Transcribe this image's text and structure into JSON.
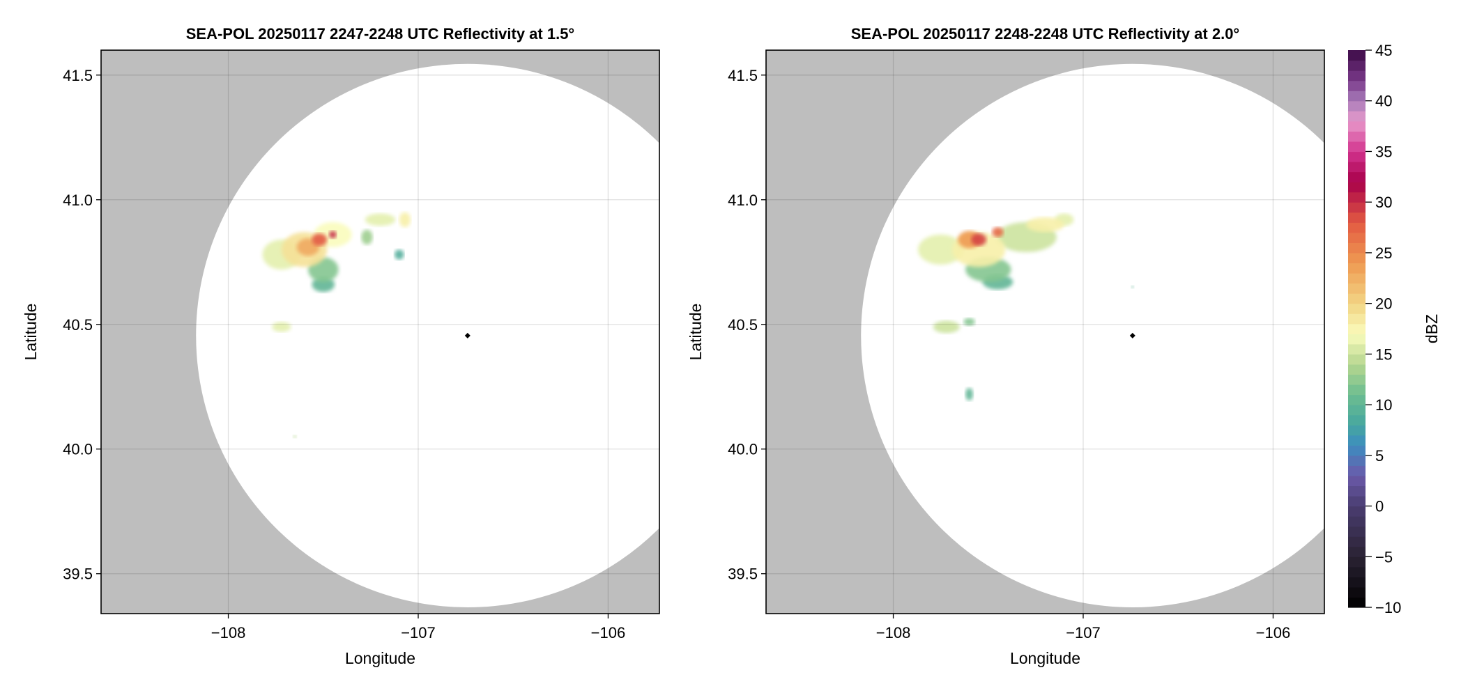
{
  "chart_data": [
    {
      "type": "heatmap",
      "title": "SEA-POL 20250117 2247-2248 UTC Reflectivity at 1.5°",
      "xlabel": "Longitude",
      "ylabel": "Latitude",
      "xlim": [
        -108.67,
        -105.73
      ],
      "ylim": [
        39.34,
        41.6
      ],
      "xticks": [
        -108,
        -107,
        -106
      ],
      "xtick_labels": [
        "−108",
        "−107",
        "−106"
      ],
      "yticks": [
        39.5,
        40.0,
        40.5,
        41.0,
        41.5
      ],
      "ytick_labels": [
        "39.5",
        "40.0",
        "40.5",
        "41.0",
        "41.5"
      ],
      "grid": true,
      "radar_site": {
        "lon": -106.74,
        "lat": 40.455
      },
      "range_circle": {
        "lon": -106.74,
        "lat": 40.455,
        "dlon": 1.43,
        "dlat": 1.09
      },
      "echoes": [
        [
          -107.72,
          40.78,
          0.1,
          0.06,
          16
        ],
        [
          -107.6,
          40.8,
          0.12,
          0.07,
          19
        ],
        [
          -107.45,
          40.86,
          0.1,
          0.05,
          17
        ],
        [
          -107.5,
          40.72,
          0.08,
          0.05,
          12
        ],
        [
          -107.5,
          40.66,
          0.06,
          0.03,
          10
        ],
        [
          -107.58,
          40.81,
          0.06,
          0.035,
          23
        ],
        [
          -107.52,
          40.84,
          0.04,
          0.025,
          28
        ],
        [
          -107.45,
          40.86,
          0.02,
          0.015,
          30
        ],
        [
          -107.2,
          40.92,
          0.08,
          0.025,
          16
        ],
        [
          -107.27,
          40.85,
          0.03,
          0.03,
          13
        ],
        [
          -107.07,
          40.92,
          0.03,
          0.03,
          18
        ],
        [
          -107.1,
          40.78,
          0.025,
          0.02,
          9
        ],
        [
          -107.72,
          40.49,
          0.05,
          0.02,
          16
        ],
        [
          -107.65,
          40.05,
          0.01,
          0.005,
          14
        ]
      ]
    },
    {
      "type": "heatmap",
      "title": "SEA-POL 20250117 2248-2248 UTC Reflectivity at 2.0°",
      "xlabel": "Longitude",
      "ylabel": "Latitude",
      "xlim": [
        -108.67,
        -105.73
      ],
      "ylim": [
        39.34,
        41.6
      ],
      "xticks": [
        -108,
        -107,
        -106
      ],
      "xtick_labels": [
        "−108",
        "−107",
        "−106"
      ],
      "yticks": [
        39.5,
        40.0,
        40.5,
        41.0,
        41.5
      ],
      "ytick_labels": [
        "39.5",
        "40.0",
        "40.5",
        "41.0",
        "41.5"
      ],
      "grid": true,
      "radar_site": {
        "lon": -106.74,
        "lat": 40.455
      },
      "range_circle": {
        "lon": -106.74,
        "lat": 40.455,
        "dlon": 1.43,
        "dlat": 1.09
      },
      "echoes": [
        [
          -107.75,
          40.8,
          0.12,
          0.06,
          16
        ],
        [
          -107.55,
          40.8,
          0.14,
          0.07,
          18
        ],
        [
          -107.3,
          40.85,
          0.16,
          0.06,
          15
        ],
        [
          -107.5,
          40.72,
          0.12,
          0.05,
          12
        ],
        [
          -107.45,
          40.67,
          0.08,
          0.03,
          10
        ],
        [
          -107.6,
          40.84,
          0.06,
          0.035,
          24
        ],
        [
          -107.55,
          40.84,
          0.04,
          0.025,
          29
        ],
        [
          -107.45,
          40.87,
          0.03,
          0.02,
          27
        ],
        [
          -107.2,
          40.9,
          0.1,
          0.03,
          18
        ],
        [
          -107.1,
          40.92,
          0.05,
          0.025,
          16
        ],
        [
          -107.72,
          40.49,
          0.07,
          0.025,
          15
        ],
        [
          -107.6,
          40.51,
          0.03,
          0.015,
          12
        ],
        [
          -107.6,
          40.22,
          0.02,
          0.025,
          10
        ],
        [
          -106.74,
          40.65,
          0.004,
          0.004,
          10
        ]
      ]
    }
  ],
  "colorbar": {
    "label": "dBZ",
    "range": [
      -10,
      45
    ],
    "ticks": [
      -10,
      -5,
      0,
      5,
      10,
      15,
      20,
      25,
      30,
      35,
      40,
      45
    ],
    "tick_labels": [
      "−10",
      "−5",
      "0",
      "5",
      "10",
      "15",
      "20",
      "25",
      "30",
      "35",
      "40",
      "45"
    ]
  },
  "colors": {
    "outside_range": "#bebebe",
    "inside_range": "#ffffff",
    "grid": "#d6d6d6"
  }
}
